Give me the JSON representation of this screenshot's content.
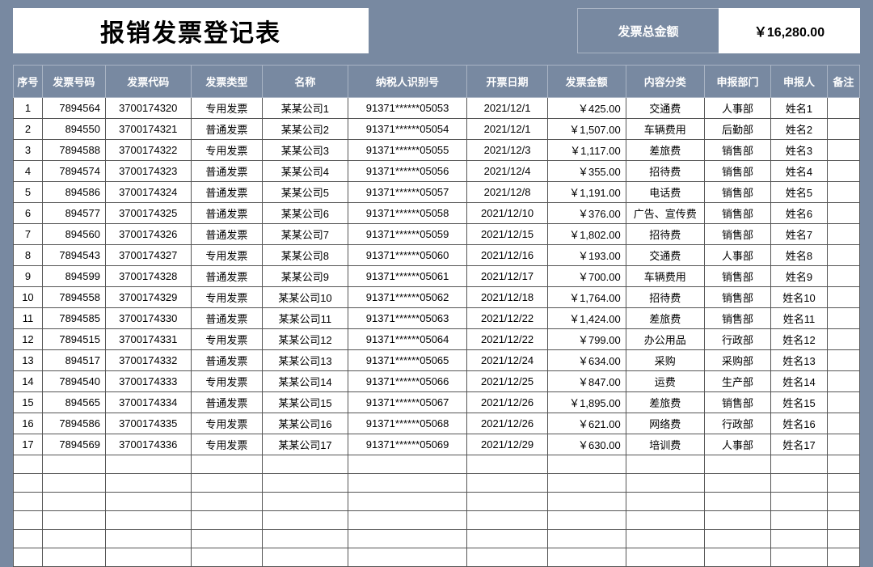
{
  "title": "报销发票登记表",
  "total_label": "发票总金额",
  "total_value": "￥16,280.00",
  "colors": {
    "page_bg": "#7889a1",
    "panel_bg": "#ffffff",
    "header_text": "#ffffff",
    "cell_border": "#555555",
    "header_border": "#a9b4c4"
  },
  "columns": [
    "序号",
    "发票号码",
    "发票代码",
    "发票类型",
    "名称",
    "纳税人识别号",
    "开票日期",
    "发票金额",
    "内容分类",
    "申报部门",
    "申报人",
    "备注"
  ],
  "rows": [
    {
      "seq": "1",
      "inv": "7894564",
      "code": "3700174320",
      "type": "专用发票",
      "name": "某某公司1",
      "tax": "91371******05053",
      "date": "2021/12/1",
      "amt": "￥425.00",
      "cat": "交通费",
      "dept": "人事部",
      "person": "姓名1",
      "note": ""
    },
    {
      "seq": "2",
      "inv": "894550",
      "code": "3700174321",
      "type": "普通发票",
      "name": "某某公司2",
      "tax": "91371******05054",
      "date": "2021/12/1",
      "amt": "￥1,507.00",
      "cat": "车辆费用",
      "dept": "后勤部",
      "person": "姓名2",
      "note": ""
    },
    {
      "seq": "3",
      "inv": "7894588",
      "code": "3700174322",
      "type": "专用发票",
      "name": "某某公司3",
      "tax": "91371******05055",
      "date": "2021/12/3",
      "amt": "￥1,117.00",
      "cat": "差旅费",
      "dept": "销售部",
      "person": "姓名3",
      "note": ""
    },
    {
      "seq": "4",
      "inv": "7894574",
      "code": "3700174323",
      "type": "普通发票",
      "name": "某某公司4",
      "tax": "91371******05056",
      "date": "2021/12/4",
      "amt": "￥355.00",
      "cat": "招待费",
      "dept": "销售部",
      "person": "姓名4",
      "note": ""
    },
    {
      "seq": "5",
      "inv": "894586",
      "code": "3700174324",
      "type": "普通发票",
      "name": "某某公司5",
      "tax": "91371******05057",
      "date": "2021/12/8",
      "amt": "￥1,191.00",
      "cat": "电话费",
      "dept": "销售部",
      "person": "姓名5",
      "note": ""
    },
    {
      "seq": "6",
      "inv": "894577",
      "code": "3700174325",
      "type": "普通发票",
      "name": "某某公司6",
      "tax": "91371******05058",
      "date": "2021/12/10",
      "amt": "￥376.00",
      "cat": "广告、宣传费",
      "dept": "销售部",
      "person": "姓名6",
      "note": ""
    },
    {
      "seq": "7",
      "inv": "894560",
      "code": "3700174326",
      "type": "普通发票",
      "name": "某某公司7",
      "tax": "91371******05059",
      "date": "2021/12/15",
      "amt": "￥1,802.00",
      "cat": "招待费",
      "dept": "销售部",
      "person": "姓名7",
      "note": ""
    },
    {
      "seq": "8",
      "inv": "7894543",
      "code": "3700174327",
      "type": "专用发票",
      "name": "某某公司8",
      "tax": "91371******05060",
      "date": "2021/12/16",
      "amt": "￥193.00",
      "cat": "交通费",
      "dept": "人事部",
      "person": "姓名8",
      "note": ""
    },
    {
      "seq": "9",
      "inv": "894599",
      "code": "3700174328",
      "type": "普通发票",
      "name": "某某公司9",
      "tax": "91371******05061",
      "date": "2021/12/17",
      "amt": "￥700.00",
      "cat": "车辆费用",
      "dept": "销售部",
      "person": "姓名9",
      "note": ""
    },
    {
      "seq": "10",
      "inv": "7894558",
      "code": "3700174329",
      "type": "专用发票",
      "name": "某某公司10",
      "tax": "91371******05062",
      "date": "2021/12/18",
      "amt": "￥1,764.00",
      "cat": "招待费",
      "dept": "销售部",
      "person": "姓名10",
      "note": ""
    },
    {
      "seq": "11",
      "inv": "7894585",
      "code": "3700174330",
      "type": "普通发票",
      "name": "某某公司11",
      "tax": "91371******05063",
      "date": "2021/12/22",
      "amt": "￥1,424.00",
      "cat": "差旅费",
      "dept": "销售部",
      "person": "姓名11",
      "note": ""
    },
    {
      "seq": "12",
      "inv": "7894515",
      "code": "3700174331",
      "type": "专用发票",
      "name": "某某公司12",
      "tax": "91371******05064",
      "date": "2021/12/22",
      "amt": "￥799.00",
      "cat": "办公用品",
      "dept": "行政部",
      "person": "姓名12",
      "note": ""
    },
    {
      "seq": "13",
      "inv": "894517",
      "code": "3700174332",
      "type": "普通发票",
      "name": "某某公司13",
      "tax": "91371******05065",
      "date": "2021/12/24",
      "amt": "￥634.00",
      "cat": "采购",
      "dept": "采购部",
      "person": "姓名13",
      "note": ""
    },
    {
      "seq": "14",
      "inv": "7894540",
      "code": "3700174333",
      "type": "专用发票",
      "name": "某某公司14",
      "tax": "91371******05066",
      "date": "2021/12/25",
      "amt": "￥847.00",
      "cat": "运费",
      "dept": "生产部",
      "person": "姓名14",
      "note": ""
    },
    {
      "seq": "15",
      "inv": "894565",
      "code": "3700174334",
      "type": "普通发票",
      "name": "某某公司15",
      "tax": "91371******05067",
      "date": "2021/12/26",
      "amt": "￥1,895.00",
      "cat": "差旅费",
      "dept": "销售部",
      "person": "姓名15",
      "note": ""
    },
    {
      "seq": "16",
      "inv": "7894586",
      "code": "3700174335",
      "type": "专用发票",
      "name": "某某公司16",
      "tax": "91371******05068",
      "date": "2021/12/26",
      "amt": "￥621.00",
      "cat": "网络费",
      "dept": "行政部",
      "person": "姓名16",
      "note": ""
    },
    {
      "seq": "17",
      "inv": "7894569",
      "code": "3700174336",
      "type": "专用发票",
      "name": "某某公司17",
      "tax": "91371******05069",
      "date": "2021/12/29",
      "amt": "￥630.00",
      "cat": "培训费",
      "dept": "人事部",
      "person": "姓名17",
      "note": ""
    }
  ],
  "empty_rows": 6
}
